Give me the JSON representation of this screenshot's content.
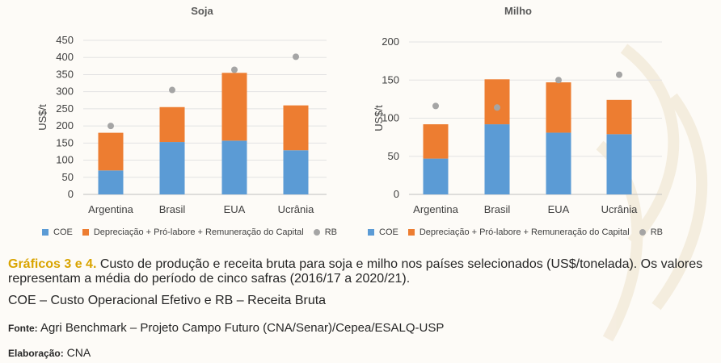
{
  "colors": {
    "coe": "#5b9bd5",
    "dep": "#ed7d31",
    "rb": "#a5a5a5",
    "caption_highlight": "#d9a400"
  },
  "chart_data": [
    {
      "type": "bar",
      "stacked": true,
      "title": "Soja",
      "ylabel": "US$/t",
      "categories": [
        "Argentina",
        "Brasil",
        "EUA",
        "Ucrânia"
      ],
      "yticks": [
        0,
        50,
        100,
        150,
        200,
        250,
        300,
        350,
        400,
        450
      ],
      "ylim": [
        0,
        450
      ],
      "series": [
        {
          "name": "COE",
          "values": [
            70,
            153,
            157,
            129
          ]
        },
        {
          "name": "Depreciação + Pró-labore + Remuneração do Capital",
          "values": [
            110,
            102,
            198,
            131
          ]
        },
        {
          "name": "RB",
          "type": "scatter",
          "values": [
            200,
            305,
            364,
            402
          ]
        }
      ]
    },
    {
      "type": "bar",
      "stacked": true,
      "title": "Milho",
      "ylabel": "US$/t",
      "categories": [
        "Argentina",
        "Brasil",
        "EUA",
        "Ucrânia"
      ],
      "yticks": [
        0,
        50,
        100,
        150,
        200
      ],
      "ylim": [
        0,
        200
      ],
      "series": [
        {
          "name": "COE",
          "values": [
            47,
            92,
            81,
            79
          ]
        },
        {
          "name": "Depreciação + Pró-labore + Remuneração do Capital",
          "values": [
            45,
            59,
            66,
            45
          ]
        },
        {
          "name": "RB",
          "type": "scatter",
          "values": [
            116,
            114,
            150,
            157
          ]
        }
      ]
    }
  ],
  "caption": {
    "highlight": "Gráficos 3 e 4.",
    "text": " Custo de produção e receita bruta para soja e milho nos países selecionados (US$/tonelada). Os valores representam a média do período de cinco safras (2016/17 a 2020/21)."
  },
  "abbrev": "COE – Custo Operacional Efetivo e RB – Receita Bruta",
  "source": {
    "label": "Fonte:",
    "text": " Agri Benchmark – Projeto Campo Futuro (CNA/Senar)/Cepea/ESALQ-USP"
  },
  "credit": {
    "label": "Elaboração:",
    "text": " CNA"
  }
}
